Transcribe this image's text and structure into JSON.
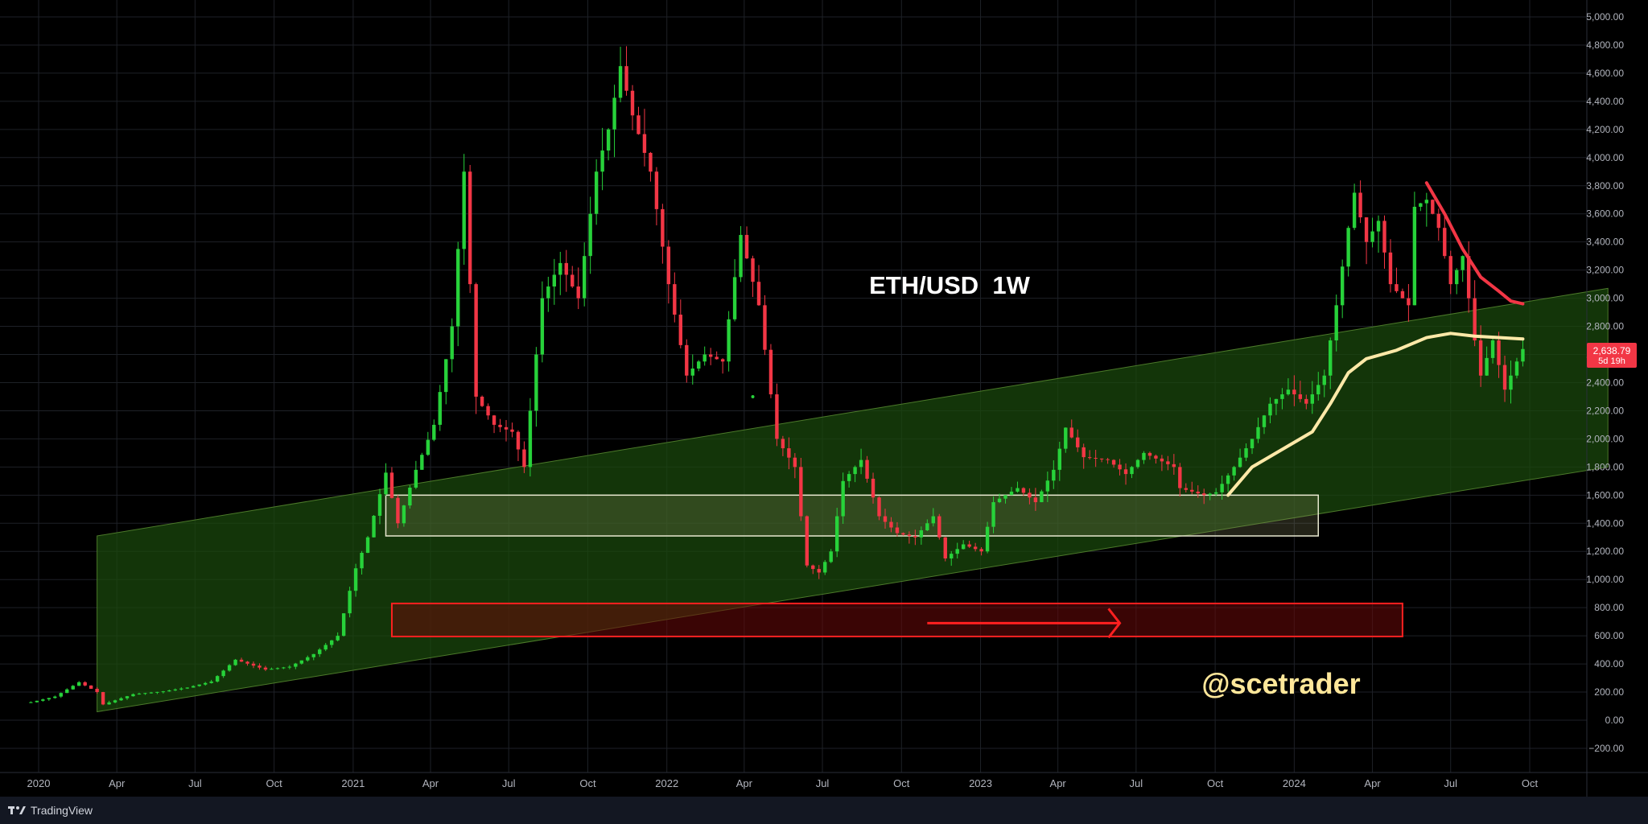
{
  "chart_data": {
    "type": "candlestick",
    "title": "ETH/USD  1W",
    "watermark": "@scetrader",
    "ylim": [
      -300,
      5000
    ],
    "y_ticks": [
      5000,
      4800,
      4600,
      4400,
      4200,
      4000,
      3800,
      3600,
      3400,
      3200,
      3000,
      2800,
      2600,
      2400,
      2200,
      2000,
      1800,
      1600,
      1400,
      1200,
      1000,
      800,
      600,
      400,
      200,
      0,
      -200
    ],
    "y_tick_labels": [
      "5,000.00",
      "4,800.00",
      "4,600.00",
      "4,400.00",
      "4,200.00",
      "4,000.00",
      "3,800.00",
      "3,600.00",
      "3,400.00",
      "3,200.00",
      "3,000.00",
      "2,800.00",
      "2,600.00",
      "2,400.00",
      "2,200.00",
      "2,000.00",
      "1,800.00",
      "1,600.00",
      "1,400.00",
      "1,200.00",
      "1,000.00",
      "800.00",
      "600.00",
      "400.00",
      "200.00",
      "0.00",
      "−200.00"
    ],
    "x_labels": [
      {
        "date": "2020-01-01",
        "label": "2020"
      },
      {
        "date": "2020-04-01",
        "label": "Apr"
      },
      {
        "date": "2020-07-01",
        "label": "Jul"
      },
      {
        "date": "2020-10-01",
        "label": "Oct"
      },
      {
        "date": "2021-01-01",
        "label": "2021"
      },
      {
        "date": "2021-04-01",
        "label": "Apr"
      },
      {
        "date": "2021-07-01",
        "label": "Jul"
      },
      {
        "date": "2021-10-01",
        "label": "Oct"
      },
      {
        "date": "2022-01-01",
        "label": "2022"
      },
      {
        "date": "2022-04-01",
        "label": "Apr"
      },
      {
        "date": "2022-07-01",
        "label": "Jul"
      },
      {
        "date": "2022-10-01",
        "label": "Oct"
      },
      {
        "date": "2023-01-01",
        "label": "2023"
      },
      {
        "date": "2023-04-01",
        "label": "Apr"
      },
      {
        "date": "2023-07-01",
        "label": "Jul"
      },
      {
        "date": "2023-10-01",
        "label": "Oct"
      },
      {
        "date": "2024-01-01",
        "label": "2024"
      },
      {
        "date": "2024-04-01",
        "label": "Apr"
      },
      {
        "date": "2024-07-01",
        "label": "Jul"
      },
      {
        "date": "2024-10-01",
        "label": "Oct"
      }
    ],
    "price_series": [
      [
        "2019-12-23",
        128
      ],
      [
        "2020-01-20",
        168
      ],
      [
        "2020-02-17",
        270
      ],
      [
        "2020-03-09",
        200
      ],
      [
        "2020-03-16",
        112
      ],
      [
        "2020-04-20",
        185
      ],
      [
        "2020-05-25",
        205
      ],
      [
        "2020-06-22",
        232
      ],
      [
        "2020-07-20",
        275
      ],
      [
        "2020-08-17",
        430
      ],
      [
        "2020-09-21",
        360
      ],
      [
        "2020-10-19",
        380
      ],
      [
        "2020-11-16",
        470
      ],
      [
        "2020-12-14",
        600
      ],
      [
        "2021-01-04",
        1080
      ],
      [
        "2021-01-18",
        1300
      ],
      [
        "2021-02-08",
        1760
      ],
      [
        "2021-02-22",
        1400
      ],
      [
        "2021-03-15",
        1780
      ],
      [
        "2021-04-05",
        2100
      ],
      [
        "2021-04-26",
        2800
      ],
      [
        "2021-05-10",
        3900
      ],
      [
        "2021-05-24",
        2300
      ],
      [
        "2021-06-14",
        2100
      ],
      [
        "2021-07-05",
        2050
      ],
      [
        "2021-07-19",
        1800
      ],
      [
        "2021-08-09",
        3000
      ],
      [
        "2021-08-30",
        3250
      ],
      [
        "2021-09-20",
        3000
      ],
      [
        "2021-10-11",
        3900
      ],
      [
        "2021-10-25",
        4200
      ],
      [
        "2021-11-08",
        4650
      ],
      [
        "2021-11-22",
        4300
      ],
      [
        "2021-12-13",
        3900
      ],
      [
        "2022-01-03",
        3100
      ],
      [
        "2022-01-24",
        2450
      ],
      [
        "2022-02-14",
        2600
      ],
      [
        "2022-03-07",
        2550
      ],
      [
        "2022-03-28",
        3450
      ],
      [
        "2022-04-18",
        2950
      ],
      [
        "2022-05-09",
        2000
      ],
      [
        "2022-05-30",
        1800
      ],
      [
        "2022-06-13",
        1100
      ],
      [
        "2022-06-27",
        1050
      ],
      [
        "2022-07-11",
        1200
      ],
      [
        "2022-07-25",
        1700
      ],
      [
        "2022-08-15",
        1850
      ],
      [
        "2022-09-05",
        1450
      ],
      [
        "2022-09-26",
        1330
      ],
      [
        "2022-10-17",
        1300
      ],
      [
        "2022-11-07",
        1450
      ],
      [
        "2022-11-21",
        1150
      ],
      [
        "2022-12-12",
        1250
      ],
      [
        "2023-01-02",
        1200
      ],
      [
        "2023-01-16",
        1550
      ],
      [
        "2023-02-13",
        1650
      ],
      [
        "2023-03-06",
        1550
      ],
      [
        "2023-03-27",
        1780
      ],
      [
        "2023-04-10",
        2080
      ],
      [
        "2023-05-01",
        1870
      ],
      [
        "2023-05-29",
        1850
      ],
      [
        "2023-06-19",
        1750
      ],
      [
        "2023-07-10",
        1900
      ],
      [
        "2023-08-14",
        1800
      ],
      [
        "2023-08-21",
        1650
      ],
      [
        "2023-09-18",
        1600
      ],
      [
        "2023-10-02",
        1620
      ],
      [
        "2023-10-23",
        1800
      ],
      [
        "2023-11-13",
        2000
      ],
      [
        "2023-12-04",
        2250
      ],
      [
        "2023-12-25",
        2350
      ],
      [
        "2024-01-15",
        2250
      ],
      [
        "2024-02-05",
        2450
      ],
      [
        "2024-02-19",
        2950
      ],
      [
        "2024-03-04",
        3500
      ],
      [
        "2024-03-11",
        3750
      ],
      [
        "2024-03-25",
        3400
      ],
      [
        "2024-04-08",
        3550
      ],
      [
        "2024-04-22",
        3100
      ],
      [
        "2024-05-13",
        2950
      ],
      [
        "2024-05-20",
        3650
      ],
      [
        "2024-06-03",
        3700
      ],
      [
        "2024-06-17",
        3500
      ],
      [
        "2024-07-01",
        3100
      ],
      [
        "2024-07-15",
        3300
      ],
      [
        "2024-07-29",
        2700
      ],
      [
        "2024-08-05",
        2450
      ],
      [
        "2024-08-19",
        2700
      ],
      [
        "2024-09-02",
        2350
      ],
      [
        "2024-09-16",
        2550
      ],
      [
        "2024-09-23",
        2638.79
      ]
    ],
    "last_price_label": "2,638.79",
    "countdown_label": "5d 19h",
    "yellow_line": [
      [
        "2023-10-16",
        1600
      ],
      [
        "2023-11-13",
        1800
      ],
      [
        "2023-12-25",
        1950
      ],
      [
        "2024-01-22",
        2050
      ],
      [
        "2024-02-12",
        2250
      ],
      [
        "2024-03-04",
        2470
      ],
      [
        "2024-03-25",
        2570
      ],
      [
        "2024-04-29",
        2630
      ],
      [
        "2024-06-03",
        2720
      ],
      [
        "2024-07-01",
        2750
      ],
      [
        "2024-07-29",
        2730
      ],
      [
        "2024-09-23",
        2710
      ]
    ],
    "red_line": [
      [
        "2024-06-03",
        3820
      ],
      [
        "2024-06-24",
        3600
      ],
      [
        "2024-07-15",
        3350
      ],
      [
        "2024-08-05",
        3150
      ],
      [
        "2024-08-26",
        3050
      ],
      [
        "2024-09-09",
        2980
      ],
      [
        "2024-09-23",
        2960
      ]
    ],
    "channel": {
      "lower": [
        [
          "2020-03-09",
          60
        ],
        [
          "2024-12-31",
          1800
        ]
      ],
      "upper": [
        [
          "2020-03-09",
          1310
        ],
        [
          "2024-12-31",
          3070
        ]
      ]
    },
    "gray_box": {
      "from": "2021-02-08",
      "to": "2024-01-29",
      "low": 1310,
      "high": 1600
    },
    "red_box": {
      "from": "2021-02-15",
      "to": "2024-05-06",
      "low": 595,
      "high": 830
    },
    "red_arrow": {
      "from": "2022-10-31",
      "to": "2023-06-12",
      "y": 690
    },
    "point_marker": [
      "2022-04-11",
      2300
    ],
    "colors": {
      "up": "#27d23a",
      "down": "#f23645",
      "grid": "#1e2127",
      "channel_fill": "#1a4a0c",
      "box": "#ffffff",
      "red_box": "#ff2020",
      "yellow_line": "#ffe9a8",
      "red_line": "#f23645",
      "axis_text": "#b2b5be",
      "title": "#ffffff",
      "watermark": "#ffe79a",
      "price_tag": "#f23645"
    }
  },
  "footer": {
    "brand": "TradingView"
  }
}
